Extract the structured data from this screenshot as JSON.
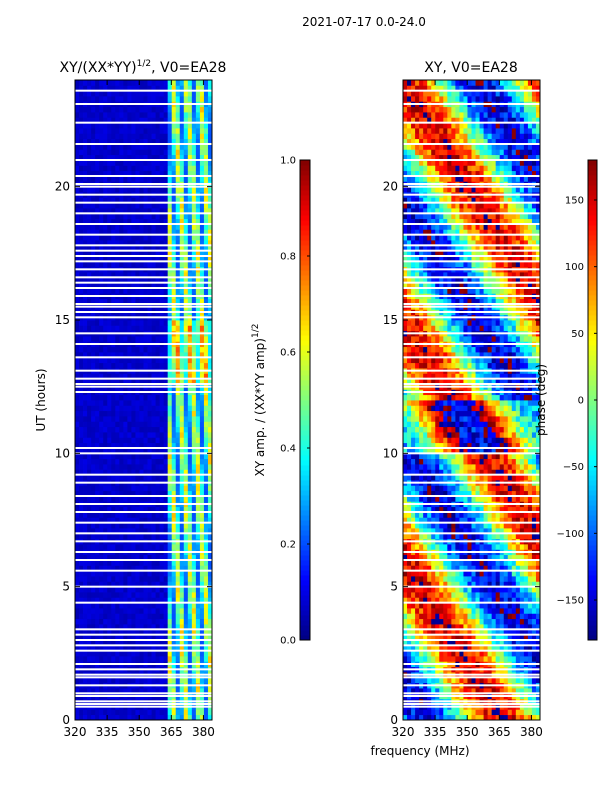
{
  "suptitle": "2021-07-17 0.0-24.0",
  "shared_xlabel": "frequency (MHz)",
  "chart_data": [
    {
      "type": "heatmap",
      "title": "XY/(XX*YY)",
      "title_superscript": "1/2",
      "title_suffix": ", V0=EA28",
      "xlabel": "",
      "ylabel": "UT (hours)",
      "xlim": [
        320,
        384
      ],
      "ylim": [
        0,
        24
      ],
      "xticks": [
        320,
        335,
        350,
        365,
        380
      ],
      "yticks": [
        0,
        5,
        10,
        15,
        20
      ],
      "colormap": "jet",
      "quantity": "normalized XY amplitude",
      "features": {
        "low_band_level": 0.05,
        "high_band_start_mhz": 363,
        "high_band_level_range": [
          0.2,
          0.7
        ]
      },
      "colorbar": {
        "label_prefix": "XY amp. / (XX*YY amp)",
        "label_superscript": "1/2",
        "range": [
          0.0,
          1.0
        ],
        "ticks": [
          "0.0",
          "0.2",
          "0.4",
          "0.6",
          "0.8",
          "1.0"
        ],
        "tick_values": [
          0.0,
          0.2,
          0.4,
          0.6,
          0.8,
          1.0
        ]
      }
    },
    {
      "type": "heatmap",
      "title": "XY, V0=EA28",
      "xlabel": "",
      "ylabel": "",
      "xlim": [
        320,
        384
      ],
      "ylim": [
        0,
        24
      ],
      "xticks": [
        320,
        335,
        350,
        365,
        380
      ],
      "yticks": [
        0,
        5,
        10,
        15,
        20
      ],
      "colormap": "jet",
      "quantity": "XY phase (deg)",
      "colorbar": {
        "label": "phase (deg)",
        "range": [
          -180,
          180
        ],
        "ticks": [
          "−150",
          "−100",
          "−50",
          "0",
          "50",
          "100",
          "150"
        ],
        "tick_values": [
          -150,
          -100,
          -50,
          0,
          50,
          100,
          150
        ]
      }
    }
  ],
  "flagged_ut_hours": [
    0.5,
    0.6,
    0.7,
    0.9,
    1.0,
    1.3,
    1.6,
    1.7,
    1.9,
    2.1,
    2.6,
    2.8,
    3.0,
    3.2,
    3.4,
    4.4,
    5.0,
    5.6,
    6.0,
    6.3,
    6.7,
    7.0,
    7.4,
    7.8,
    8.1,
    8.4,
    8.9,
    9.2,
    10.0,
    10.2,
    12.3,
    12.5,
    12.6,
    12.8,
    13.1,
    13.6,
    14.1,
    14.5,
    15.1,
    15.3,
    15.5,
    15.6,
    15.9,
    16.2,
    16.4,
    16.6,
    16.9,
    17.2,
    17.4,
    17.6,
    17.8,
    18.2,
    18.6,
    19.0,
    19.4,
    19.7,
    20.0,
    20.1,
    20.4,
    21.0,
    21.6,
    22.4,
    23.1,
    23.6
  ]
}
